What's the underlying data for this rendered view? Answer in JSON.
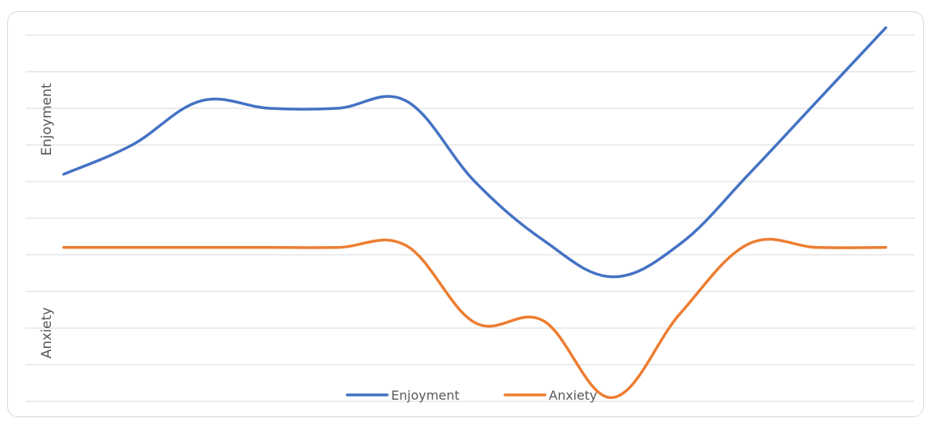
{
  "chart_data": {
    "type": "line",
    "title": "",
    "xlabel": "",
    "ylabel_top": "Enjoyment",
    "ylabel_bottom": "Anxiety",
    "x": [
      1,
      2,
      3,
      4,
      5,
      6,
      7,
      8,
      9,
      10,
      11,
      12,
      13
    ],
    "ylim": [
      0,
      10
    ],
    "grid": true,
    "gridline_count": 10,
    "smooth": true,
    "legend_position": "bottom",
    "series": [
      {
        "name": "Enjoyment",
        "color": "#4472C4",
        "values": [
          6.2,
          7.0,
          8.2,
          8.0,
          8.0,
          8.2,
          6.0,
          4.4,
          3.4,
          4.3,
          6.2,
          8.2,
          10.2
        ]
      },
      {
        "name": "Anxiety",
        "color": "#ED7D31",
        "values": [
          4.2,
          4.2,
          4.2,
          4.2,
          4.2,
          4.25,
          2.15,
          2.2,
          0.1,
          2.4,
          4.3,
          4.2,
          4.2
        ]
      }
    ]
  }
}
